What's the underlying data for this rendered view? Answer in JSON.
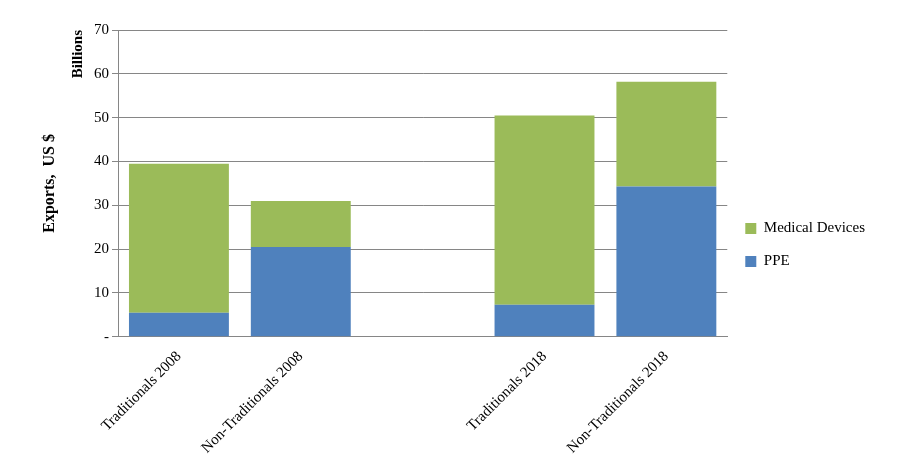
{
  "chart_data": {
    "type": "bar",
    "y_label": "Exports,  US $",
    "annotations": [
      "Billions"
    ],
    "categories": [
      "Traditionals 2008",
      "Non-Traditionals 2008",
      null,
      "Traditionals 2018",
      "Non-Traditionals 2018"
    ],
    "series": [
      {
        "name": "PPE",
        "color": "#4f81bd",
        "values": [
          5.5,
          20.5,
          null,
          7.3,
          34.3
        ]
      },
      {
        "name": "Medical Devices",
        "color": "#9bbb59",
        "values": [
          34.0,
          10.5,
          null,
          43.2,
          23.9
        ]
      }
    ],
    "stacked": true,
    "ylim": [
      0,
      70
    ],
    "yticks": [
      {
        "value": 0,
        "label": "-"
      },
      10,
      20,
      30,
      40,
      50,
      60,
      70
    ],
    "grid": true,
    "legend": "right"
  }
}
